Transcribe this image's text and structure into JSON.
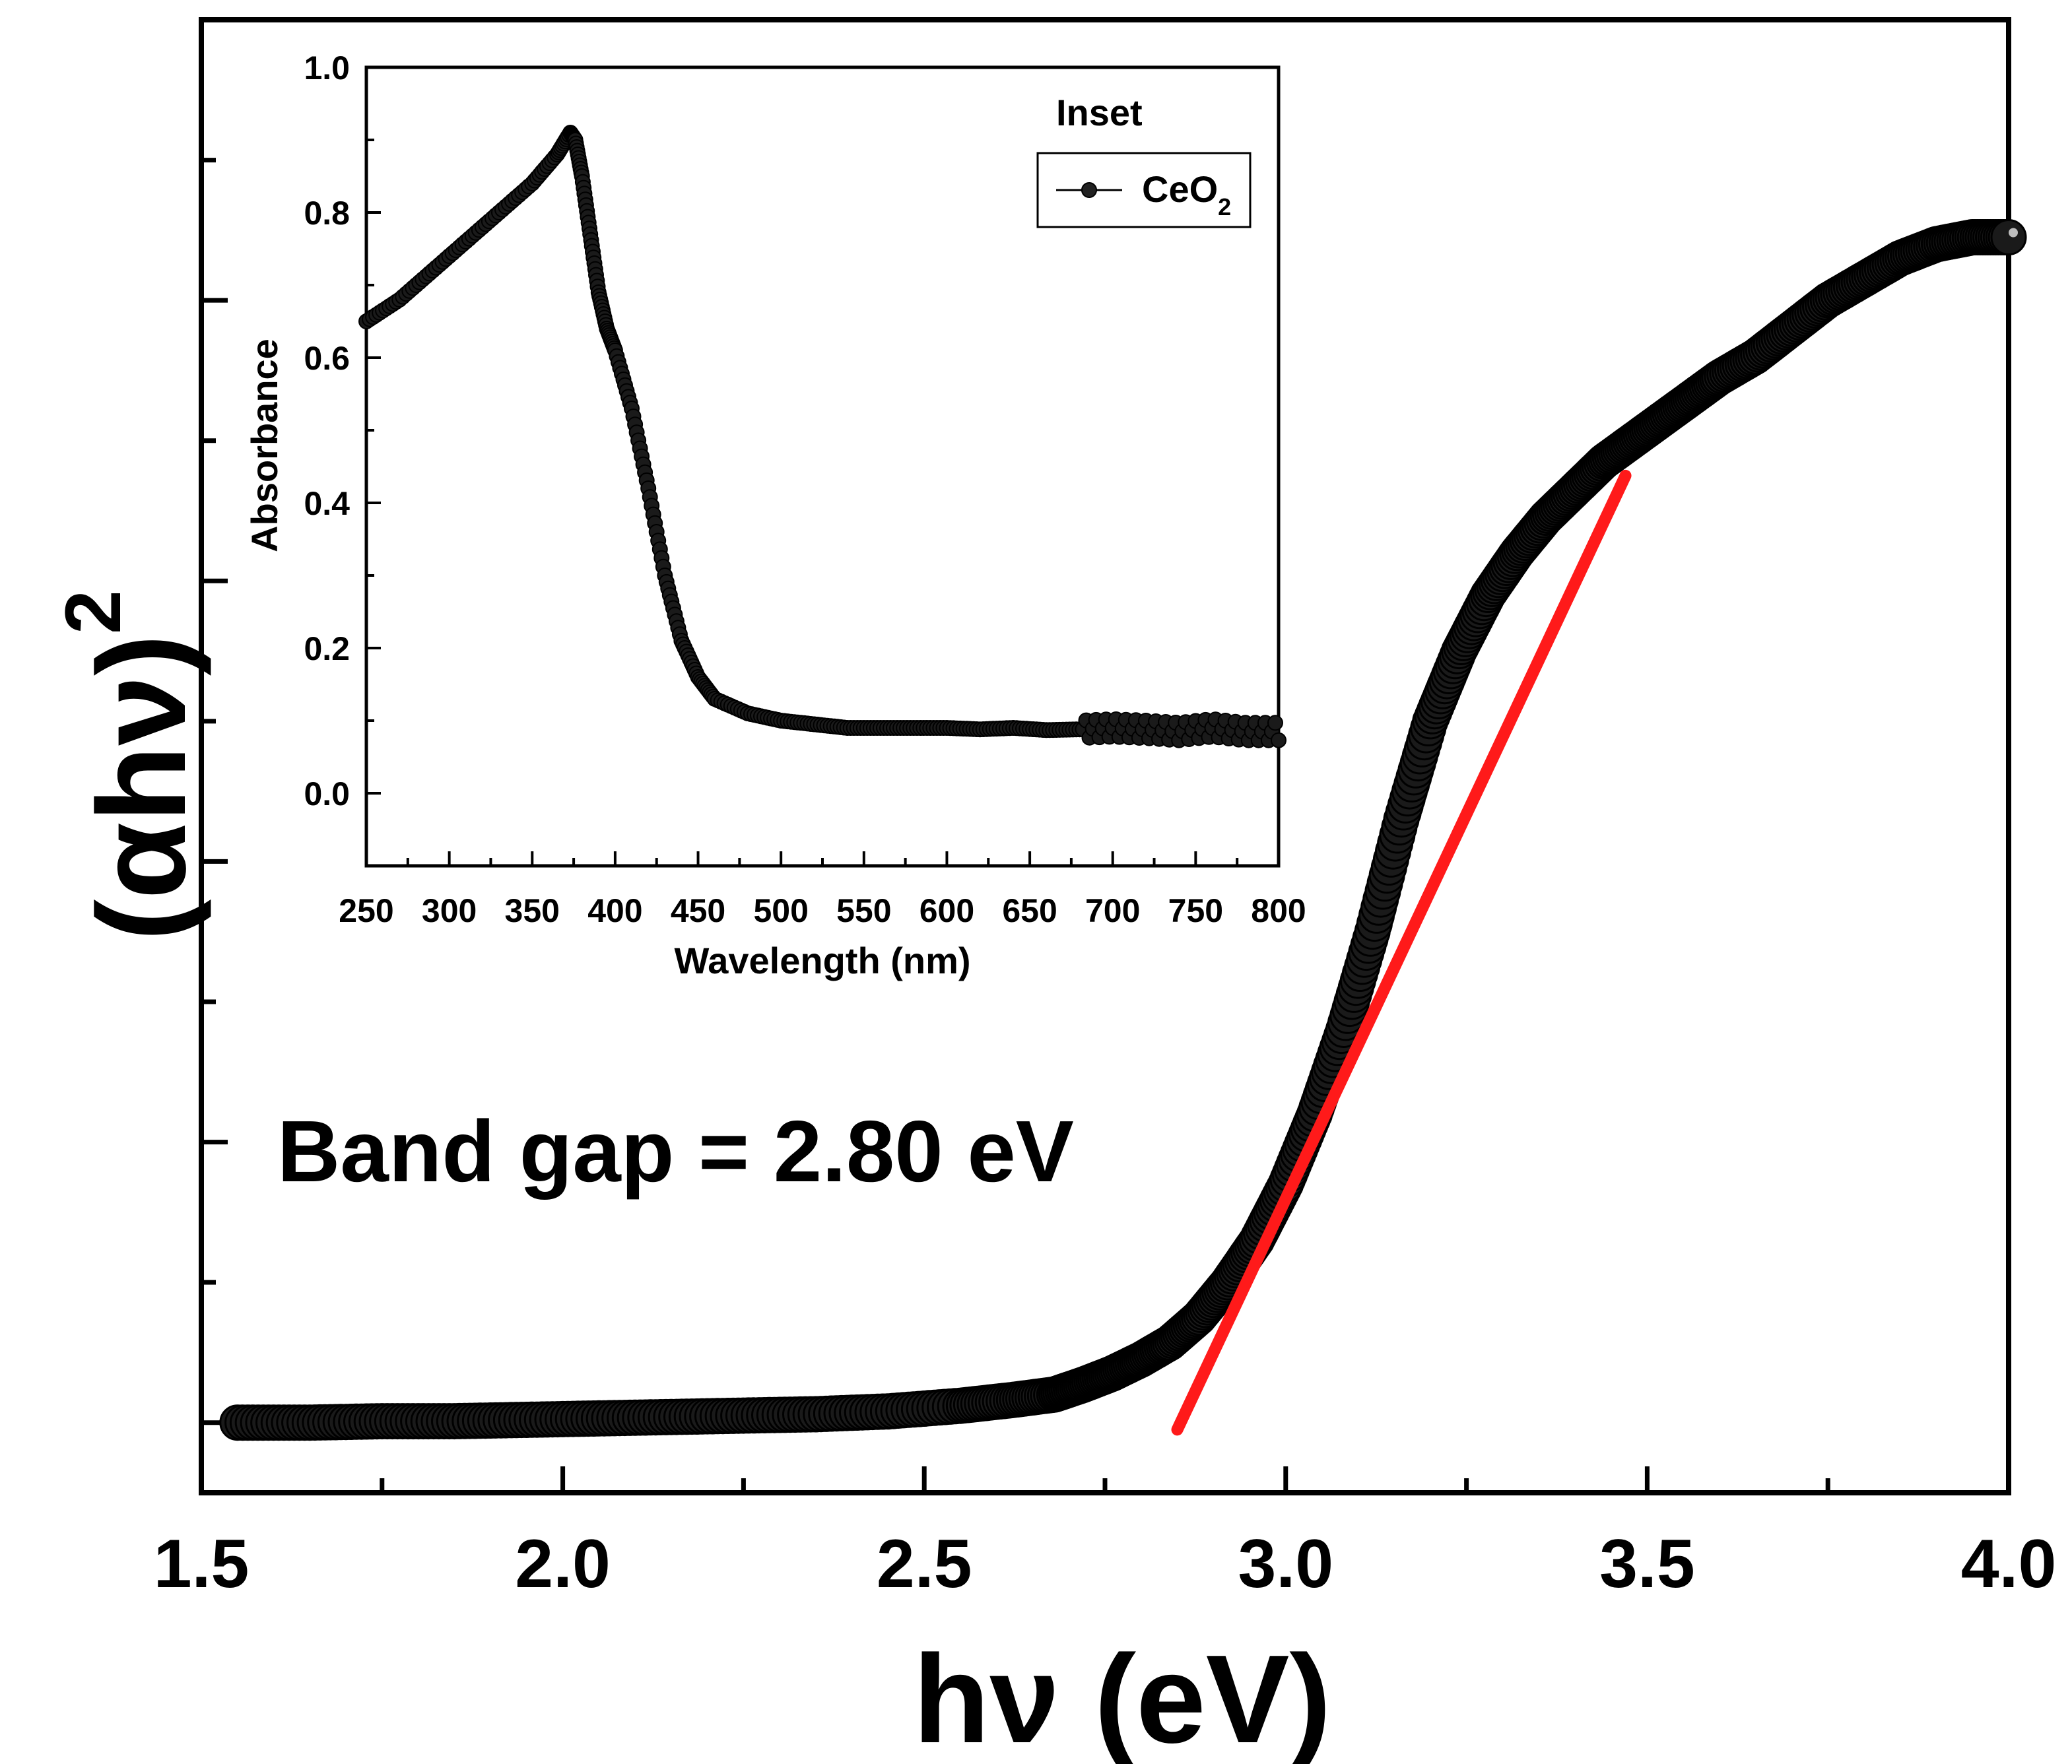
{
  "chart_data": [
    {
      "id": "main",
      "type": "scatter",
      "title": "",
      "xlabel": "hν (eV)",
      "ylabel": "(αhν)",
      "ylabel_superscript": "2",
      "xlim": [
        1.5,
        4.0
      ],
      "ylim": [
        -0.05,
        1.0
      ],
      "x_ticks": [
        "1.5",
        "2.0",
        "2.5",
        "3.0",
        "3.5",
        "4.0"
      ],
      "y_tick_labels": "none",
      "annotation": "Band gap = 2.80 eV",
      "colors": {
        "data": "#111111",
        "fit": "#ff1a1a"
      },
      "series": [
        {
          "name": "(αhν)^2",
          "x": [
            1.55,
            1.65,
            1.75,
            1.85,
            1.95,
            2.05,
            2.15,
            2.25,
            2.35,
            2.45,
            2.55,
            2.62,
            2.68,
            2.72,
            2.76,
            2.8,
            2.84,
            2.88,
            2.92,
            2.96,
            3.0,
            3.04,
            3.08,
            3.12,
            3.16,
            3.2,
            3.24,
            3.28,
            3.32,
            3.36,
            3.4,
            3.44,
            3.48,
            3.52,
            3.56,
            3.6,
            3.65,
            3.7,
            3.75,
            3.8,
            3.85,
            3.9,
            3.95,
            4.0
          ],
          "y": [
            0.0,
            0.0,
            0.001,
            0.001,
            0.002,
            0.003,
            0.004,
            0.005,
            0.006,
            0.008,
            0.012,
            0.016,
            0.02,
            0.027,
            0.035,
            0.045,
            0.057,
            0.075,
            0.1,
            0.13,
            0.17,
            0.22,
            0.28,
            0.35,
            0.43,
            0.5,
            0.55,
            0.59,
            0.62,
            0.645,
            0.665,
            0.685,
            0.7,
            0.715,
            0.73,
            0.745,
            0.76,
            0.78,
            0.8,
            0.815,
            0.83,
            0.84,
            0.845,
            0.845
          ]
        },
        {
          "name": "linear fit",
          "kind": "line",
          "x": [
            2.85,
            3.47
          ],
          "y": [
            -0.005,
            0.675
          ]
        }
      ]
    },
    {
      "id": "inset",
      "type": "scatter",
      "title": "Inset",
      "xlabel": "Wavelength (nm)",
      "ylabel": "Absorbance",
      "xlim": [
        250,
        800
      ],
      "ylim": [
        -0.1,
        1.0
      ],
      "x_ticks": [
        "250",
        "300",
        "350",
        "400",
        "450",
        "500",
        "550",
        "600",
        "650",
        "700",
        "750",
        "800"
      ],
      "y_ticks": [
        "0.0",
        "0.2",
        "0.4",
        "0.6",
        "0.8",
        "1.0"
      ],
      "legend": {
        "placement": "top-right",
        "entries": [
          {
            "label": "CeO",
            "subscript": "2"
          }
        ]
      },
      "series": [
        {
          "name": "CeO2",
          "x": [
            250,
            270,
            290,
            310,
            330,
            350,
            365,
            373,
            376,
            380,
            385,
            390,
            395,
            400,
            410,
            420,
            430,
            440,
            450,
            460,
            480,
            500,
            520,
            540,
            560,
            580,
            600,
            620,
            640,
            660,
            680,
            700,
            720,
            740,
            760,
            780,
            800
          ],
          "y": [
            0.65,
            0.68,
            0.72,
            0.76,
            0.8,
            0.84,
            0.88,
            0.91,
            0.9,
            0.85,
            0.77,
            0.69,
            0.64,
            0.61,
            0.53,
            0.42,
            0.3,
            0.21,
            0.16,
            0.13,
            0.11,
            0.1,
            0.095,
            0.09,
            0.09,
            0.09,
            0.09,
            0.088,
            0.09,
            0.087,
            0.088,
            0.09,
            0.088,
            0.085,
            0.09,
            0.085,
            0.085
          ]
        }
      ]
    }
  ]
}
